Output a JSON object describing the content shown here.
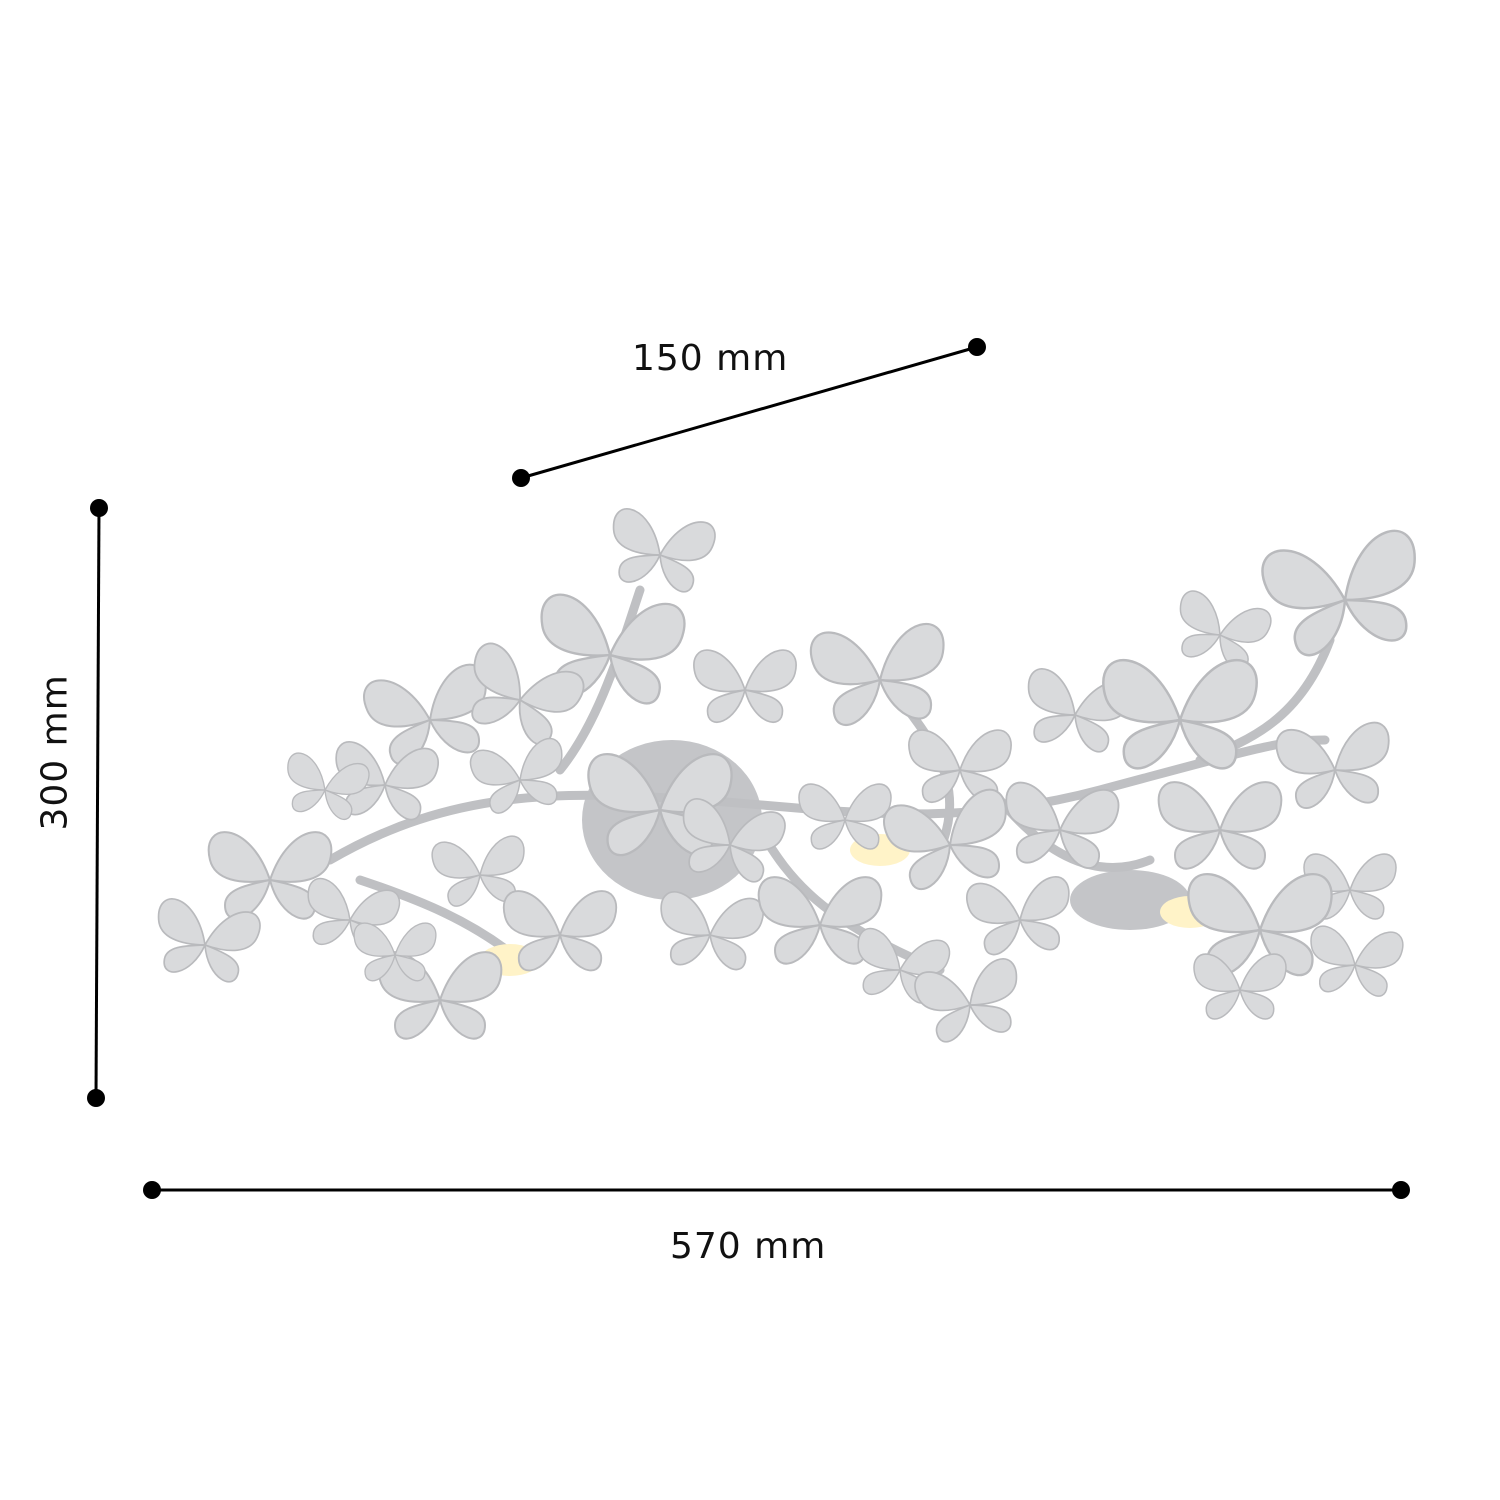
{
  "dimensions": {
    "depth": "150 mm",
    "height": "300 mm",
    "width": "570 mm"
  },
  "product": {
    "description_icon": "butterfly-wall-lamp-image",
    "colors": {
      "butterfly": "#d9dadc",
      "butterfly_shade": "#b9babd",
      "branch": "#bfc0c3",
      "light": "#fff3c8",
      "dimension_line": "#000000"
    }
  }
}
